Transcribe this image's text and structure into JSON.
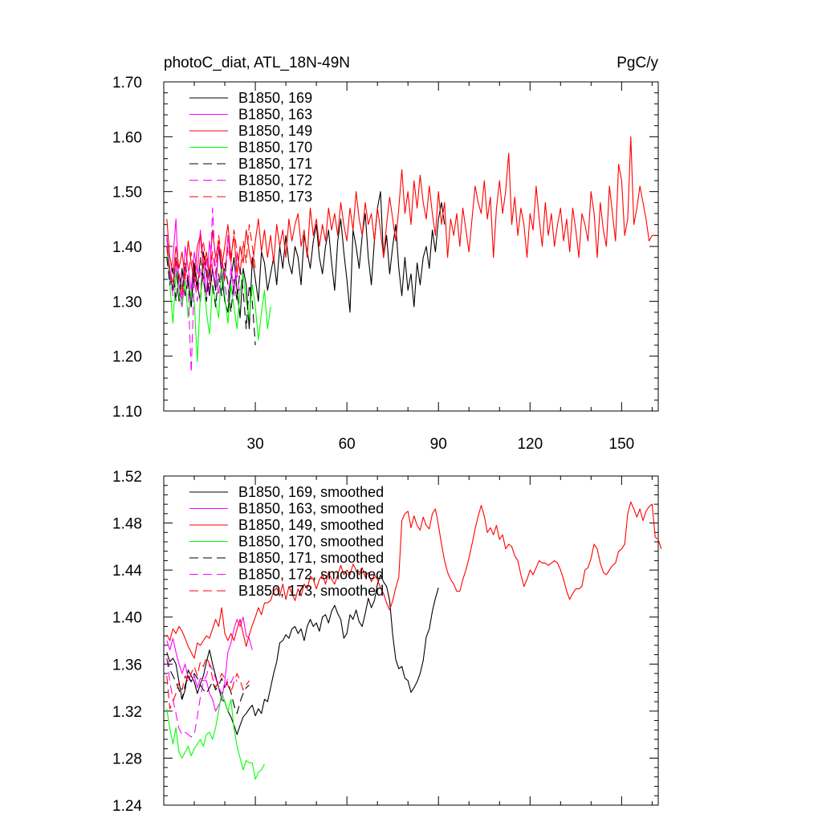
{
  "chart_data": [
    {
      "type": "line",
      "title": "photoC_diat, ATL_18N-49N",
      "units": "PgC/y",
      "xlabel": "",
      "ylabel": "",
      "xlim": [
        0,
        162
      ],
      "ylim": [
        1.1,
        1.7
      ],
      "xticks": [
        30,
        60,
        90,
        120,
        150
      ],
      "yticks": [
        1.1,
        1.2,
        1.3,
        1.4,
        1.5,
        1.6,
        1.7
      ],
      "grid": false,
      "legend_position": "top-left",
      "series": [
        {
          "name": "B1850, 169",
          "color": "#000000",
          "dash": "solid",
          "x_start": 1,
          "values": [
            1.42,
            1.35,
            1.32,
            1.38,
            1.3,
            1.36,
            1.31,
            1.34,
            1.29,
            1.37,
            1.33,
            1.3,
            1.39,
            1.35,
            1.31,
            1.36,
            1.32,
            1.4,
            1.35,
            1.3,
            1.28,
            1.34,
            1.38,
            1.32,
            1.27,
            1.36,
            1.33,
            1.25,
            1.38,
            1.34,
            1.3,
            1.39,
            1.37,
            1.32,
            1.35,
            1.38,
            1.33,
            1.4,
            1.36,
            1.42,
            1.37,
            1.35,
            1.4,
            1.38,
            1.33,
            1.42,
            1.39,
            1.36,
            1.41,
            1.44,
            1.38,
            1.35,
            1.4,
            1.43,
            1.37,
            1.32,
            1.41,
            1.45,
            1.39,
            1.34,
            1.28,
            1.43,
            1.4,
            1.36,
            1.42,
            1.46,
            1.38,
            1.33,
            1.41,
            1.47,
            1.5,
            1.38,
            1.42,
            1.35,
            1.4,
            1.44,
            1.36,
            1.31,
            1.38,
            1.32,
            1.35,
            1.29,
            1.37,
            1.33,
            1.38,
            1.4,
            1.36,
            1.43,
            1.39,
            1.45,
            1.48,
            1.44
          ]
        },
        {
          "name": "B1850, 163",
          "color": "#ff00ff",
          "dash": "solid",
          "x_start": 1,
          "values": [
            1.42,
            1.34,
            1.38,
            1.45,
            1.33,
            1.3,
            1.4,
            1.36,
            1.32,
            1.39,
            1.35,
            1.43,
            1.37,
            1.31,
            1.41,
            1.36,
            1.33,
            1.4,
            1.38,
            1.34,
            1.42,
            1.37,
            1.31,
            1.39,
            1.35
          ]
        },
        {
          "name": "B1850, 149",
          "color": "#ff0000",
          "dash": "solid",
          "x_start": 1,
          "values": [
            1.45,
            1.38,
            1.35,
            1.4,
            1.36,
            1.39,
            1.34,
            1.41,
            1.37,
            1.33,
            1.4,
            1.42,
            1.36,
            1.39,
            1.35,
            1.43,
            1.38,
            1.41,
            1.36,
            1.4,
            1.44,
            1.38,
            1.42,
            1.35,
            1.4,
            1.37,
            1.43,
            1.39,
            1.36,
            1.41,
            1.45,
            1.39,
            1.43,
            1.38,
            1.42,
            1.37,
            1.44,
            1.4,
            1.43,
            1.38,
            1.45,
            1.41,
            1.44,
            1.46,
            1.4,
            1.43,
            1.38,
            1.47,
            1.42,
            1.45,
            1.4,
            1.44,
            1.41,
            1.47,
            1.43,
            1.46,
            1.42,
            1.48,
            1.44,
            1.41,
            1.47,
            1.43,
            1.5,
            1.45,
            1.42,
            1.48,
            1.44,
            1.46,
            1.41,
            1.47,
            1.43,
            1.38,
            1.44,
            1.49,
            1.45,
            1.41,
            1.47,
            1.54,
            1.46,
            1.5,
            1.44,
            1.52,
            1.47,
            1.53,
            1.48,
            1.45,
            1.51,
            1.46,
            1.42,
            1.5,
            1.44,
            1.48,
            1.38,
            1.45,
            1.42,
            1.46,
            1.4,
            1.47,
            1.43,
            1.39,
            1.45,
            1.51,
            1.48,
            1.46,
            1.52,
            1.45,
            1.49,
            1.38,
            1.47,
            1.52,
            1.46,
            1.5,
            1.57,
            1.44,
            1.49,
            1.42,
            1.47,
            1.44,
            1.38,
            1.46,
            1.43,
            1.51,
            1.45,
            1.4,
            1.48,
            1.42,
            1.46,
            1.4,
            1.44,
            1.47,
            1.41,
            1.45,
            1.39,
            1.47,
            1.43,
            1.38,
            1.46,
            1.44,
            1.41,
            1.5,
            1.46,
            1.38,
            1.48,
            1.43,
            1.4,
            1.51,
            1.46,
            1.41,
            1.55,
            1.52,
            1.42,
            1.45,
            1.6,
            1.44,
            1.47,
            1.51,
            1.48,
            1.45,
            1.41,
            1.42,
            1.42
          ]
        },
        {
          "name": "B1850, 170",
          "color": "#00ff00",
          "dash": "solid",
          "x_start": 1,
          "values": [
            1.4,
            1.33,
            1.26,
            1.35,
            1.31,
            1.29,
            1.34,
            1.27,
            1.32,
            1.3,
            1.19,
            1.31,
            1.35,
            1.28,
            1.24,
            1.33,
            1.3,
            1.27,
            1.36,
            1.31,
            1.26,
            1.33,
            1.29,
            1.25,
            1.32,
            1.35,
            1.3,
            1.27,
            1.33,
            1.29,
            1.23,
            1.28,
            1.32,
            1.25,
            1.29
          ]
        },
        {
          "name": "B1850, 171",
          "color": "#000000",
          "dash": "dashed",
          "x_start": 1,
          "values": [
            1.38,
            1.33,
            1.36,
            1.3,
            1.35,
            1.32,
            1.37,
            1.33,
            1.29,
            1.36,
            1.32,
            1.38,
            1.34,
            1.3,
            1.36,
            1.33,
            1.29,
            1.35,
            1.31,
            1.37,
            1.33,
            1.28,
            1.34,
            1.3,
            1.36,
            1.32,
            1.25,
            1.33,
            1.3,
            1.22
          ]
        },
        {
          "name": "B1850, 172",
          "color": "#ff00ff",
          "dash": "dashed",
          "x_start": 1,
          "values": [
            1.4,
            1.35,
            1.31,
            1.37,
            1.33,
            1.29,
            1.36,
            1.32,
            1.17,
            1.34,
            1.3,
            1.36,
            1.33,
            1.38,
            1.32,
            1.47,
            1.35,
            1.31,
            1.37,
            1.33,
            1.3,
            1.36,
            1.32,
            1.35,
            1.31
          ]
        },
        {
          "name": "B1850, 173",
          "color": "#ff0000",
          "dash": "dashed",
          "x_start": 1,
          "values": [
            1.4,
            1.36,
            1.33,
            1.38,
            1.35,
            1.31,
            1.37,
            1.34,
            1.39,
            1.35,
            1.32,
            1.38,
            1.41,
            1.36,
            1.33,
            1.39,
            1.35,
            1.42,
            1.38,
            1.34,
            1.4,
            1.37,
            1.43,
            1.39,
            1.35,
            1.41,
            1.37,
            1.44,
            1.4,
            1.36
          ]
        }
      ]
    },
    {
      "type": "line",
      "title": "",
      "xlabel": "",
      "ylabel": "",
      "xlim": [
        0,
        162
      ],
      "ylim": [
        1.24,
        1.52
      ],
      "yticks": [
        1.24,
        1.28,
        1.32,
        1.36,
        1.4,
        1.44,
        1.48,
        1.52
      ],
      "grid": false,
      "legend_position": "top-left",
      "series": [
        {
          "name": "B1850, 169, smoothed",
          "color": "#000000",
          "dash": "solid",
          "x_start": 1,
          "values": [
            1.37,
            1.362,
            1.365,
            1.36,
            1.345,
            1.33,
            1.338,
            1.355,
            1.35,
            1.345,
            1.335,
            1.343,
            1.35,
            1.362,
            1.372,
            1.36,
            1.35,
            1.34,
            1.33,
            1.328,
            1.32,
            1.315,
            1.308,
            1.3,
            1.308,
            1.315,
            1.318,
            1.322,
            1.325,
            1.316,
            1.322,
            1.318,
            1.33,
            1.328,
            1.34,
            1.352,
            1.362,
            1.378,
            1.38,
            1.385,
            1.382,
            1.39,
            1.392,
            1.386,
            1.39,
            1.38,
            1.392,
            1.398,
            1.392,
            1.395,
            1.388,
            1.4,
            1.402,
            1.395,
            1.405,
            1.41,
            1.403,
            1.398,
            1.382,
            1.386,
            1.402,
            1.398,
            1.406,
            1.396,
            1.392,
            1.403,
            1.416,
            1.408,
            1.414,
            1.428,
            1.436,
            1.43,
            1.426,
            1.414,
            1.385,
            1.364,
            1.356,
            1.358,
            1.348,
            1.346,
            1.336,
            1.34,
            1.345,
            1.352,
            1.363,
            1.383,
            1.39,
            1.405,
            1.416,
            1.425
          ]
        },
        {
          "name": "B1850, 163, smoothed",
          "color": "#ff00ff",
          "dash": "solid",
          "x_start": 1,
          "values": [
            1.38,
            1.372,
            1.382,
            1.37,
            1.36,
            1.352,
            1.36,
            1.348,
            1.345,
            1.35,
            1.34,
            1.348,
            1.346,
            1.346,
            1.335,
            1.33,
            1.32,
            1.325,
            1.33,
            1.345,
            1.37,
            1.378,
            1.39,
            1.398,
            1.392,
            1.4,
            1.384,
            1.382,
            1.372
          ]
        },
        {
          "name": "B1850, 149, smoothed",
          "color": "#ff0000",
          "dash": "solid",
          "x_start": 1,
          "values": [
            1.385,
            1.38,
            1.39,
            1.386,
            1.392,
            1.388,
            1.382,
            1.375,
            1.37,
            1.365,
            1.378,
            1.376,
            1.38,
            1.384,
            1.382,
            1.39,
            1.398,
            1.392,
            1.408,
            1.386,
            1.38,
            1.386,
            1.38,
            1.39,
            1.398,
            1.386,
            1.375,
            1.385,
            1.393,
            1.4,
            1.408,
            1.402,
            1.412,
            1.412,
            1.414,
            1.422,
            1.425,
            1.418,
            1.428,
            1.415,
            1.426,
            1.42,
            1.414,
            1.424,
            1.418,
            1.428,
            1.424,
            1.435,
            1.432,
            1.424,
            1.432,
            1.436,
            1.428,
            1.438,
            1.432,
            1.428,
            1.436,
            1.444,
            1.436,
            1.44,
            1.436,
            1.445,
            1.44,
            1.436,
            1.442,
            1.434,
            1.438,
            1.43,
            1.436,
            1.432,
            1.425,
            1.42,
            1.412,
            1.406,
            1.414,
            1.425,
            1.434,
            1.482,
            1.488,
            1.49,
            1.476,
            1.486,
            1.478,
            1.474,
            1.485,
            1.478,
            1.475,
            1.488,
            1.492,
            1.478,
            1.462,
            1.448,
            1.438,
            1.432,
            1.428,
            1.422,
            1.422,
            1.432,
            1.44,
            1.45,
            1.462,
            1.475,
            1.486,
            1.495,
            1.486,
            1.472,
            1.476,
            1.47,
            1.478,
            1.466,
            1.47,
            1.458,
            1.462,
            1.46,
            1.452,
            1.448,
            1.436,
            1.426,
            1.432,
            1.44,
            1.436,
            1.442,
            1.448,
            1.446,
            1.446,
            1.444,
            1.446,
            1.448,
            1.446,
            1.44,
            1.432,
            1.422,
            1.415,
            1.42,
            1.424,
            1.424,
            1.426,
            1.44,
            1.442,
            1.45,
            1.462,
            1.458,
            1.446,
            1.438,
            1.436,
            1.44,
            1.444,
            1.446,
            1.456,
            1.458,
            1.462,
            1.488,
            1.498,
            1.492,
            1.485,
            1.492,
            1.482,
            1.49,
            1.494,
            1.496,
            1.468,
            1.466,
            1.458
          ]
        },
        {
          "name": "B1850, 170, smoothed",
          "color": "#00ff00",
          "dash": "solid",
          "x_start": 1,
          "values": [
            1.322,
            1.305,
            1.292,
            1.306,
            1.285,
            1.28,
            1.285,
            1.29,
            1.282,
            1.288,
            1.292,
            1.296,
            1.29,
            1.3,
            1.302,
            1.296,
            1.306,
            1.32,
            1.336,
            1.328,
            1.32,
            1.33,
            1.305,
            1.29,
            1.28,
            1.27,
            1.278,
            1.276,
            1.276,
            1.262,
            1.268,
            1.27,
            1.275
          ]
        },
        {
          "name": "B1850, 171, smoothed",
          "color": "#000000",
          "dash": "dashed",
          "x_start": 1,
          "values": [
            1.365,
            1.355,
            1.35,
            1.345,
            1.338,
            1.33,
            1.342,
            1.35,
            1.345,
            1.352,
            1.348,
            1.342,
            1.338,
            1.335,
            1.34,
            1.345,
            1.338,
            1.342,
            1.348,
            1.34,
            1.345,
            1.336,
            1.325,
            1.318,
            1.328,
            1.335,
            1.34,
            1.342
          ]
        },
        {
          "name": "B1850, 172, smoothed",
          "color": "#ff00ff",
          "dash": "dashed",
          "x_start": 1,
          "values": [
            1.365,
            1.345,
            1.33,
            1.318,
            1.305,
            1.3,
            1.302,
            1.3,
            1.298,
            1.3,
            1.315,
            1.332,
            1.345,
            1.35,
            1.36,
            1.355,
            1.348,
            1.34,
            1.335,
            1.34,
            1.348,
            1.344,
            1.35,
            1.345
          ]
        },
        {
          "name": "B1850, 173, smoothed",
          "color": "#ff0000",
          "dash": "dashed",
          "x_start": 1,
          "values": [
            1.35,
            1.322,
            1.328,
            1.335,
            1.345,
            1.338,
            1.35,
            1.345,
            1.352,
            1.358,
            1.35,
            1.362,
            1.358,
            1.366,
            1.36,
            1.348,
            1.34,
            1.346,
            1.352,
            1.348,
            1.342,
            1.336,
            1.345,
            1.352,
            1.346,
            1.338,
            1.342,
            1.346
          ]
        }
      ]
    }
  ]
}
